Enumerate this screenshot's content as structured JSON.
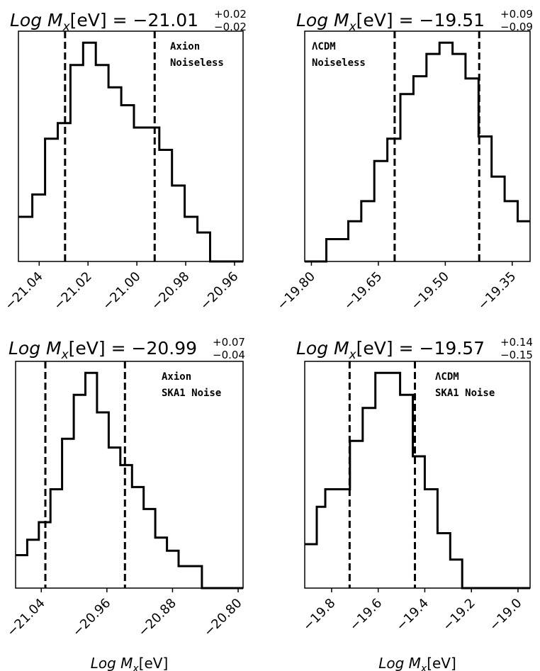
{
  "chart_data": [
    {
      "type": "histogram",
      "title_prefix": "Log M",
      "title_sub": "x",
      "title_unit": "[eV] = ",
      "title_value": "−21.01",
      "title_sup": "+0.02",
      "title_sublow": "−0.02",
      "text_lines": [
        "Axion",
        "Noiseless"
      ],
      "xlim": [
        -21.0485,
        -20.9565
      ],
      "ylim": [
        0,
        1
      ],
      "ticks": [
        -21.04,
        -21.02,
        -21.0,
        -20.98,
        -20.96
      ],
      "tick_labels": [
        "−21.04",
        "−21.02",
        "−21.00",
        "−20.98",
        "−20.96"
      ],
      "vlines": [
        -21.0294,
        -20.9927
      ],
      "steps": [
        [
          -21.0485,
          -21.0428,
          0.2
        ],
        [
          -21.0428,
          -21.0376,
          0.3
        ],
        [
          -21.0376,
          -21.0324,
          0.55
        ],
        [
          -21.0324,
          -21.0272,
          0.62
        ],
        [
          -21.0272,
          -21.022,
          0.88
        ],
        [
          -21.022,
          -21.0168,
          0.98
        ],
        [
          -21.0168,
          -21.0116,
          0.88
        ],
        [
          -21.0116,
          -21.0064,
          0.78
        ],
        [
          -21.0064,
          -21.0012,
          0.7
        ],
        [
          -21.0012,
          -20.996,
          0.6
        ],
        [
          -20.996,
          -20.9908,
          0.6
        ],
        [
          -20.9908,
          -20.9856,
          0.5
        ],
        [
          -20.9856,
          -20.9804,
          0.34
        ],
        [
          -20.9804,
          -20.9752,
          0.2
        ],
        [
          -20.9752,
          -20.97,
          0.13
        ],
        [
          -20.97,
          -20.9648,
          0.0
        ],
        [
          -20.9648,
          -20.9565,
          0.0
        ]
      ],
      "xlabel": ""
    },
    {
      "type": "histogram",
      "title_prefix": "Log M",
      "title_sub": "x",
      "title_unit": "[eV] = ",
      "title_value": "−19.51",
      "title_sup": "+0.09",
      "title_sublow": "−0.09",
      "text_lines": [
        "ΛCDM",
        "Noiseless"
      ],
      "xlim": [
        -19.815,
        -19.31
      ],
      "ylim": [
        0,
        1
      ],
      "ticks": [
        -19.8,
        -19.65,
        -19.5,
        -19.35
      ],
      "tick_labels": [
        "−19.80",
        "−19.65",
        "−19.50",
        "−19.35"
      ],
      "vlines": [
        -19.6135,
        -19.424
      ],
      "steps": [
        [
          -19.815,
          -19.7666,
          0.0
        ],
        [
          -19.7666,
          -19.7174,
          0.1
        ],
        [
          -19.7174,
          -19.6882,
          0.18
        ],
        [
          -19.6882,
          -19.659,
          0.27
        ],
        [
          -19.659,
          -19.6298,
          0.45
        ],
        [
          -19.6298,
          -19.6006,
          0.55
        ],
        [
          -19.6006,
          -19.5714,
          0.75
        ],
        [
          -19.5714,
          -19.5422,
          0.83
        ],
        [
          -19.5422,
          -19.513,
          0.93
        ],
        [
          -19.513,
          -19.4838,
          0.98
        ],
        [
          -19.4838,
          -19.4546,
          0.93
        ],
        [
          -19.4546,
          -19.4254,
          0.82
        ],
        [
          -19.4254,
          -19.3962,
          0.56
        ],
        [
          -19.3962,
          -19.367,
          0.38
        ],
        [
          -19.367,
          -19.3378,
          0.27
        ],
        [
          -19.3378,
          -19.31,
          0.18
        ]
      ],
      "xlabel": ""
    },
    {
      "type": "histogram",
      "title_prefix": "Log M",
      "title_sub": "x",
      "title_unit": "[eV] = ",
      "title_value": "−20.99",
      "title_sup": "+0.07",
      "title_sublow": "−0.04",
      "text_lines": [
        "Axion",
        "SKA1 Noise"
      ],
      "xlim": [
        -21.0713,
        -20.794
      ],
      "ylim": [
        0,
        1
      ],
      "ticks": [
        -21.04,
        -20.96,
        -20.88,
        -20.8
      ],
      "tick_labels": [
        "−21.04",
        "−20.96",
        "−20.88",
        "−20.80"
      ],
      "vlines": [
        -21.035,
        -20.938
      ],
      "steps": [
        [
          -21.0713,
          -21.0571,
          0.15
        ],
        [
          -21.0571,
          -21.043,
          0.22
        ],
        [
          -21.043,
          -21.0288,
          0.3
        ],
        [
          -21.0288,
          -21.0146,
          0.45
        ],
        [
          -21.0146,
          -21.0004,
          0.68
        ],
        [
          -21.0004,
          -20.9862,
          0.88
        ],
        [
          -20.9862,
          -20.972,
          0.98
        ],
        [
          -20.972,
          -20.9578,
          0.8
        ],
        [
          -20.9578,
          -20.9436,
          0.64
        ],
        [
          -20.9436,
          -20.9294,
          0.56
        ],
        [
          -20.9294,
          -20.9152,
          0.46
        ],
        [
          -20.9152,
          -20.901,
          0.36
        ],
        [
          -20.901,
          -20.8868,
          0.23
        ],
        [
          -20.8868,
          -20.8726,
          0.17
        ],
        [
          -20.8726,
          -20.8584,
          0.1
        ],
        [
          -20.8584,
          -20.8442,
          0.1
        ],
        [
          -20.8442,
          -20.83,
          0.0
        ],
        [
          -20.83,
          -20.794,
          0.0
        ]
      ],
      "xlabel": "Log Mₓ[eV]"
    },
    {
      "type": "histogram",
      "title_prefix": "Log M",
      "title_sub": "x",
      "title_unit": "[eV] = ",
      "title_value": "−19.57",
      "title_sup": "+0.14",
      "title_sublow": "−0.15",
      "text_lines": [
        "ΛCDM",
        "SKA1 Noise"
      ],
      "xlim": [
        -19.9154,
        -18.9481
      ],
      "ylim": [
        0,
        1
      ],
      "ticks": [
        -19.8,
        -19.6,
        -19.4,
        -19.2,
        -19.0
      ],
      "tick_labels": [
        "−19.8",
        "−19.6",
        "−19.4",
        "−19.2",
        "−19.0"
      ],
      "vlines": [
        -19.7227,
        -19.4424
      ],
      "steps": [
        [
          -19.9154,
          -19.8636,
          0.2
        ],
        [
          -19.8636,
          -19.8273,
          0.37
        ],
        [
          -19.8273,
          -19.7727,
          0.45
        ],
        [
          -19.7727,
          -19.7212,
          0.45
        ],
        [
          -19.7212,
          -19.6667,
          0.67
        ],
        [
          -19.6667,
          -19.6121,
          0.82
        ],
        [
          -19.6121,
          -19.5606,
          0.98
        ],
        [
          -19.5606,
          -19.5061,
          0.98
        ],
        [
          -19.5061,
          -19.4515,
          0.88
        ],
        [
          -19.4515,
          -19.4,
          0.6
        ],
        [
          -19.4,
          -19.3455,
          0.45
        ],
        [
          -19.3455,
          -19.2909,
          0.25
        ],
        [
          -19.2909,
          -19.2394,
          0.13
        ],
        [
          -19.2394,
          -18.9481,
          0.0
        ]
      ],
      "xlabel": "Log Mₓ[eV]"
    }
  ]
}
